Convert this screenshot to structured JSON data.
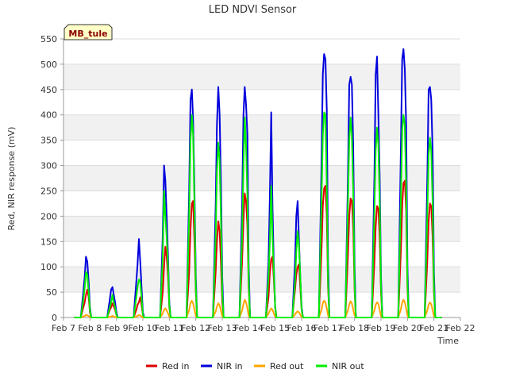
{
  "chart_data": {
    "type": "line",
    "title": "LED NDVI Sensor",
    "xlabel": "Time",
    "ylabel": "Red, NIR response (mV)",
    "badge": "MB_tule",
    "ylim": [
      0,
      550
    ],
    "yticks": [
      0,
      50,
      100,
      150,
      200,
      250,
      300,
      350,
      400,
      450,
      500,
      550
    ],
    "xlim": [
      7,
      22
    ],
    "x_unit": "day of February",
    "xticks": [
      {
        "value": 7,
        "label": "Feb 7"
      },
      {
        "value": 8,
        "label": "Feb 8"
      },
      {
        "value": 9,
        "label": "Feb 9"
      },
      {
        "value": 10,
        "label": "Feb 10"
      },
      {
        "value": 11,
        "label": "Feb 11"
      },
      {
        "value": 12,
        "label": "Feb 12"
      },
      {
        "value": 13,
        "label": "Feb 13"
      },
      {
        "value": 14,
        "label": "Feb 14"
      },
      {
        "value": 15,
        "label": "Feb 15"
      },
      {
        "value": 16,
        "label": "Feb 16"
      },
      {
        "value": 17,
        "label": "Feb 17"
      },
      {
        "value": 18,
        "label": "Feb 18"
      },
      {
        "value": 19,
        "label": "Feb 19"
      },
      {
        "value": 20,
        "label": "Feb 20"
      },
      {
        "value": 21,
        "label": "Feb 21"
      },
      {
        "value": 22,
        "label": "Feb 22"
      }
    ],
    "grid": "horizontal bands",
    "legend_position": "bottom",
    "series": [
      {
        "name": "Red in",
        "color": "#dd0000",
        "x": [
          7.4,
          7.65,
          7.75,
          7.8,
          7.85,
          7.9,
          7.95,
          8.0,
          8.05,
          8.1,
          8.15,
          8.3,
          8.65,
          8.75,
          8.8,
          8.85,
          8.9,
          8.95,
          9.0,
          9.05,
          9.1,
          9.3,
          9.65,
          9.75,
          9.8,
          9.85,
          9.9,
          9.95,
          10.0,
          10.05,
          10.1,
          10.3,
          10.65,
          10.75,
          10.8,
          10.85,
          10.9,
          10.95,
          11.0,
          11.05,
          11.1,
          11.3,
          11.65,
          11.75,
          11.8,
          11.85,
          11.9,
          11.95,
          12.0,
          12.05,
          12.1,
          12.3,
          12.65,
          12.75,
          12.8,
          12.85,
          12.9,
          12.95,
          13.0,
          13.05,
          13.1,
          13.3,
          13.65,
          13.75,
          13.8,
          13.85,
          13.9,
          13.95,
          14.0,
          14.05,
          14.1,
          14.3,
          14.65,
          14.75,
          14.8,
          14.85,
          14.9,
          14.95,
          15.0,
          15.05,
          15.1,
          15.3,
          15.65,
          15.75,
          15.8,
          15.85,
          15.9,
          15.95,
          16.0,
          16.05,
          16.1,
          16.3,
          16.65,
          16.75,
          16.8,
          16.85,
          16.9,
          16.95,
          17.0,
          17.05,
          17.1,
          17.3,
          17.65,
          17.75,
          17.8,
          17.85,
          17.9,
          17.95,
          18.0,
          18.05,
          18.1,
          18.3,
          18.65,
          18.75,
          18.8,
          18.85,
          18.9,
          18.95,
          19.0,
          19.05,
          19.1,
          19.3,
          19.65,
          19.75,
          19.8,
          19.85,
          19.9,
          19.95,
          20.0,
          20.05,
          20.1,
          20.3,
          20.65,
          20.75,
          20.8,
          20.85,
          20.9,
          20.95,
          21.0,
          21.05,
          21.1,
          21.3
        ],
        "y": [
          0,
          0,
          20,
          30,
          45,
          55,
          40,
          10,
          0,
          0,
          0,
          0,
          0,
          15,
          20,
          28,
          22,
          15,
          5,
          0,
          0,
          0,
          0,
          15,
          25,
          30,
          40,
          25,
          5,
          0,
          0,
          0,
          0,
          50,
          100,
          140,
          120,
          80,
          20,
          0,
          0,
          0,
          0,
          90,
          175,
          225,
          230,
          150,
          50,
          0,
          0,
          0,
          0,
          90,
          150,
          190,
          170,
          110,
          30,
          0,
          0,
          0,
          0,
          110,
          190,
          245,
          230,
          180,
          60,
          0,
          0,
          0,
          0,
          40,
          90,
          115,
          120,
          75,
          20,
          0,
          0,
          0,
          0,
          55,
          85,
          100,
          105,
          60,
          15,
          0,
          0,
          0,
          0,
          130,
          220,
          255,
          260,
          200,
          60,
          0,
          0,
          0,
          0,
          120,
          200,
          235,
          230,
          180,
          55,
          0,
          0,
          0,
          0,
          110,
          180,
          220,
          215,
          160,
          50,
          0,
          0,
          0,
          0,
          130,
          220,
          265,
          270,
          210,
          60,
          0,
          0,
          0,
          0,
          110,
          190,
          225,
          220,
          160,
          50,
          0,
          0,
          0
        ]
      },
      {
        "name": "NIR in",
        "color": "#0000dd",
        "x": [
          7.4,
          7.65,
          7.75,
          7.8,
          7.85,
          7.9,
          7.95,
          8.0,
          8.05,
          8.1,
          8.15,
          8.3,
          8.65,
          8.75,
          8.8,
          8.85,
          8.9,
          8.95,
          9.0,
          9.05,
          9.1,
          9.3,
          9.65,
          9.75,
          9.8,
          9.85,
          9.9,
          9.95,
          10.0,
          10.05,
          10.1,
          10.3,
          10.65,
          10.75,
          10.8,
          10.85,
          10.9,
          10.95,
          11.0,
          11.05,
          11.1,
          11.3,
          11.65,
          11.75,
          11.8,
          11.85,
          11.9,
          11.95,
          12.0,
          12.05,
          12.1,
          12.3,
          12.65,
          12.75,
          12.8,
          12.85,
          12.9,
          12.95,
          13.0,
          13.05,
          13.1,
          13.3,
          13.65,
          13.75,
          13.8,
          13.85,
          13.9,
          13.95,
          14.0,
          14.05,
          14.1,
          14.3,
          14.65,
          14.75,
          14.8,
          14.85,
          14.9,
          14.95,
          15.0,
          15.05,
          15.1,
          15.3,
          15.65,
          15.75,
          15.8,
          15.85,
          15.9,
          15.95,
          16.0,
          16.05,
          16.1,
          16.3,
          16.65,
          16.75,
          16.8,
          16.85,
          16.9,
          16.95,
          17.0,
          17.05,
          17.1,
          17.3,
          17.65,
          17.75,
          17.8,
          17.85,
          17.9,
          17.95,
          18.0,
          18.05,
          18.1,
          18.3,
          18.65,
          18.75,
          18.8,
          18.85,
          18.9,
          18.95,
          19.0,
          19.05,
          19.1,
          19.3,
          19.65,
          19.75,
          19.8,
          19.85,
          19.9,
          19.95,
          20.0,
          20.05,
          20.1,
          20.3,
          20.65,
          20.75,
          20.8,
          20.85,
          20.9,
          20.95,
          21.0,
          21.05,
          21.1,
          21.3
        ],
        "y": [
          0,
          0,
          50,
          80,
          120,
          110,
          70,
          20,
          0,
          0,
          0,
          0,
          0,
          35,
          55,
          60,
          45,
          30,
          10,
          0,
          0,
          0,
          0,
          70,
          105,
          155,
          110,
          60,
          10,
          0,
          0,
          0,
          0,
          160,
          300,
          270,
          200,
          120,
          30,
          0,
          0,
          0,
          0,
          250,
          430,
          450,
          390,
          250,
          80,
          0,
          0,
          0,
          0,
          220,
          380,
          455,
          400,
          270,
          80,
          0,
          0,
          0,
          0,
          220,
          400,
          455,
          420,
          360,
          100,
          0,
          0,
          0,
          0,
          110,
          240,
          405,
          220,
          100,
          20,
          0,
          0,
          0,
          0,
          110,
          200,
          230,
          150,
          80,
          20,
          0,
          0,
          0,
          0,
          300,
          480,
          520,
          510,
          410,
          110,
          0,
          0,
          0,
          0,
          270,
          460,
          475,
          460,
          340,
          100,
          0,
          0,
          0,
          0,
          280,
          480,
          515,
          400,
          280,
          80,
          0,
          0,
          0,
          0,
          330,
          510,
          530,
          490,
          380,
          100,
          0,
          0,
          0,
          0,
          270,
          450,
          455,
          430,
          330,
          90,
          0,
          0,
          0
        ]
      },
      {
        "name": "Red out",
        "color": "#ffa500",
        "x": [
          7.4,
          7.65,
          7.75,
          7.8,
          7.85,
          7.9,
          7.95,
          8.0,
          8.05,
          8.1,
          8.15,
          8.3,
          8.65,
          8.75,
          8.8,
          8.85,
          8.9,
          8.95,
          9.0,
          9.05,
          9.1,
          9.3,
          9.65,
          9.75,
          9.8,
          9.85,
          9.9,
          9.95,
          10.0,
          10.05,
          10.1,
          10.3,
          10.65,
          10.75,
          10.8,
          10.85,
          10.9,
          10.95,
          11.0,
          11.05,
          11.1,
          11.3,
          11.65,
          11.75,
          11.8,
          11.85,
          11.9,
          11.95,
          12.0,
          12.05,
          12.1,
          12.3,
          12.65,
          12.75,
          12.8,
          12.85,
          12.9,
          12.95,
          13.0,
          13.05,
          13.1,
          13.3,
          13.65,
          13.75,
          13.8,
          13.85,
          13.9,
          13.95,
          14.0,
          14.05,
          14.1,
          14.3,
          14.65,
          14.75,
          14.8,
          14.85,
          14.9,
          14.95,
          15.0,
          15.05,
          15.1,
          15.3,
          15.65,
          15.75,
          15.8,
          15.85,
          15.9,
          15.95,
          16.0,
          16.05,
          16.1,
          16.3,
          16.65,
          16.75,
          16.8,
          16.85,
          16.9,
          16.95,
          17.0,
          17.05,
          17.1,
          17.3,
          17.65,
          17.75,
          17.8,
          17.85,
          17.9,
          17.95,
          18.0,
          18.05,
          18.1,
          18.3,
          18.65,
          18.75,
          18.8,
          18.85,
          18.9,
          18.95,
          19.0,
          19.05,
          19.1,
          19.3,
          19.65,
          19.75,
          19.8,
          19.85,
          19.9,
          19.95,
          20.0,
          20.05,
          20.1,
          20.3,
          20.65,
          20.75,
          20.8,
          20.85,
          20.9,
          20.95,
          21.0,
          21.05,
          21.1,
          21.3
        ],
        "y": [
          0,
          0,
          2,
          3,
          5,
          4,
          3,
          1,
          0,
          0,
          0,
          0,
          0,
          1,
          2,
          3,
          2,
          1,
          0,
          0,
          0,
          0,
          0,
          2,
          3,
          5,
          4,
          2,
          0,
          0,
          0,
          0,
          0,
          8,
          15,
          18,
          14,
          8,
          2,
          0,
          0,
          0,
          0,
          15,
          28,
          33,
          28,
          15,
          3,
          0,
          0,
          0,
          0,
          12,
          22,
          28,
          24,
          14,
          3,
          0,
          0,
          0,
          0,
          14,
          26,
          35,
          30,
          18,
          4,
          0,
          0,
          0,
          0,
          8,
          14,
          18,
          15,
          8,
          2,
          0,
          0,
          0,
          0,
          6,
          10,
          12,
          10,
          6,
          1,
          0,
          0,
          0,
          0,
          15,
          28,
          33,
          30,
          18,
          4,
          0,
          0,
          0,
          0,
          14,
          26,
          32,
          28,
          16,
          4,
          0,
          0,
          0,
          0,
          14,
          25,
          30,
          27,
          15,
          3,
          0,
          0,
          0,
          0,
          16,
          30,
          35,
          30,
          18,
          4,
          0,
          0,
          0,
          0,
          14,
          25,
          30,
          26,
          15,
          3,
          0,
          0,
          0
        ]
      },
      {
        "name": "NIR out",
        "color": "#00ee00",
        "x": [
          7.4,
          7.65,
          7.75,
          7.8,
          7.85,
          7.9,
          7.95,
          8.0,
          8.05,
          8.1,
          8.15,
          8.3,
          8.65,
          8.75,
          8.8,
          8.85,
          8.9,
          8.95,
          9.0,
          9.05,
          9.1,
          9.3,
          9.65,
          9.75,
          9.8,
          9.85,
          9.9,
          9.95,
          10.0,
          10.05,
          10.1,
          10.3,
          10.65,
          10.75,
          10.8,
          10.85,
          10.9,
          10.95,
          11.0,
          11.05,
          11.1,
          11.3,
          11.65,
          11.75,
          11.8,
          11.85,
          11.9,
          11.95,
          12.0,
          12.05,
          12.1,
          12.3,
          12.65,
          12.75,
          12.8,
          12.85,
          12.9,
          12.95,
          13.0,
          13.05,
          13.1,
          13.3,
          13.65,
          13.75,
          13.8,
          13.85,
          13.9,
          13.95,
          14.0,
          14.05,
          14.1,
          14.3,
          14.65,
          14.75,
          14.8,
          14.85,
          14.9,
          14.95,
          15.0,
          15.05,
          15.1,
          15.3,
          15.65,
          15.75,
          15.8,
          15.85,
          15.9,
          15.95,
          16.0,
          16.05,
          16.1,
          16.3,
          16.65,
          16.75,
          16.8,
          16.85,
          16.9,
          16.95,
          17.0,
          17.05,
          17.1,
          17.3,
          17.65,
          17.75,
          17.8,
          17.85,
          17.9,
          17.95,
          18.0,
          18.05,
          18.1,
          18.3,
          18.65,
          18.75,
          18.8,
          18.85,
          18.9,
          18.95,
          19.0,
          19.05,
          19.1,
          19.3,
          19.65,
          19.75,
          19.8,
          19.85,
          19.9,
          19.95,
          20.0,
          20.05,
          20.1,
          20.3,
          20.65,
          20.75,
          20.8,
          20.85,
          20.9,
          20.95,
          21.0,
          21.05,
          21.1,
          21.3
        ],
        "y": [
          0,
          0,
          35,
          60,
          90,
          85,
          50,
          15,
          0,
          0,
          0,
          0,
          0,
          20,
          30,
          45,
          30,
          20,
          5,
          0,
          0,
          0,
          0,
          40,
          60,
          75,
          70,
          40,
          5,
          0,
          0,
          0,
          0,
          120,
          250,
          200,
          160,
          100,
          25,
          0,
          0,
          0,
          0,
          200,
          350,
          400,
          360,
          220,
          60,
          0,
          0,
          0,
          0,
          160,
          290,
          345,
          310,
          200,
          50,
          0,
          0,
          0,
          0,
          160,
          300,
          395,
          340,
          240,
          70,
          0,
          0,
          0,
          0,
          80,
          150,
          260,
          160,
          90,
          20,
          0,
          0,
          0,
          0,
          70,
          130,
          170,
          140,
          80,
          15,
          0,
          0,
          0,
          0,
          230,
          360,
          405,
          400,
          260,
          70,
          0,
          0,
          0,
          0,
          220,
          350,
          395,
          360,
          250,
          65,
          0,
          0,
          0,
          0,
          210,
          330,
          375,
          340,
          230,
          60,
          0,
          0,
          0,
          0,
          230,
          370,
          400,
          380,
          260,
          70,
          0,
          0,
          0,
          0,
          200,
          320,
          355,
          330,
          230,
          60,
          0,
          0,
          0
        ]
      }
    ]
  }
}
